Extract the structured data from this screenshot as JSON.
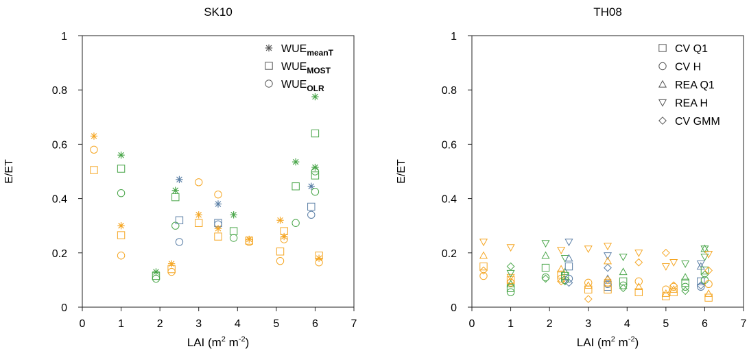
{
  "chart_data": [
    {
      "type": "scatter",
      "title": "SK10",
      "xlabel": "LAI (m",
      "xlabel_sup1": "2",
      "xlabel_mid": " m",
      "xlabel_sup2": "-2",
      "xlabel_end": ")",
      "ylabel": "E/ET",
      "xlim": [
        0,
        7
      ],
      "ylim": [
        0,
        1
      ],
      "xticks": [
        "0",
        "1",
        "2",
        "3",
        "4",
        "5",
        "6",
        "7"
      ],
      "yticks": [
        "0",
        "0.2",
        "0.4",
        "0.6",
        "0.8",
        "1"
      ],
      "legend": [
        {
          "base": "WUE",
          "sub": "meanT",
          "marker": "star"
        },
        {
          "base": "WUE",
          "sub": "MOST",
          "marker": "square"
        },
        {
          "base": "WUE",
          "sub": "OLR",
          "marker": "circle"
        }
      ],
      "colors": {
        "orange": "#f5a623",
        "green": "#4aa64a",
        "blue": "#5b7fa6",
        "gray": "#555555"
      },
      "points": [
        {
          "m": "star",
          "c": "orange",
          "x": 0.3,
          "y": 0.63
        },
        {
          "m": "square",
          "c": "orange",
          "x": 0.3,
          "y": 0.505
        },
        {
          "m": "circle",
          "c": "orange",
          "x": 0.3,
          "y": 0.58
        },
        {
          "m": "star",
          "c": "green",
          "x": 1.0,
          "y": 0.56
        },
        {
          "m": "square",
          "c": "green",
          "x": 1.0,
          "y": 0.51
        },
        {
          "m": "circle",
          "c": "green",
          "x": 1.0,
          "y": 0.42
        },
        {
          "m": "star",
          "c": "orange",
          "x": 1.0,
          "y": 0.3
        },
        {
          "m": "square",
          "c": "orange",
          "x": 1.0,
          "y": 0.265
        },
        {
          "m": "circle",
          "c": "orange",
          "x": 1.0,
          "y": 0.19
        },
        {
          "m": "star",
          "c": "green",
          "x": 1.9,
          "y": 0.13
        },
        {
          "m": "square",
          "c": "green",
          "x": 1.9,
          "y": 0.115
        },
        {
          "m": "circle",
          "c": "green",
          "x": 1.9,
          "y": 0.105
        },
        {
          "m": "star",
          "c": "orange",
          "x": 2.3,
          "y": 0.16
        },
        {
          "m": "square",
          "c": "orange",
          "x": 2.3,
          "y": 0.14
        },
        {
          "m": "circle",
          "c": "orange",
          "x": 2.3,
          "y": 0.13
        },
        {
          "m": "star",
          "c": "green",
          "x": 2.4,
          "y": 0.43
        },
        {
          "m": "square",
          "c": "green",
          "x": 2.4,
          "y": 0.405
        },
        {
          "m": "circle",
          "c": "green",
          "x": 2.4,
          "y": 0.3
        },
        {
          "m": "star",
          "c": "blue",
          "x": 2.5,
          "y": 0.47
        },
        {
          "m": "square",
          "c": "blue",
          "x": 2.5,
          "y": 0.32
        },
        {
          "m": "circle",
          "c": "blue",
          "x": 2.5,
          "y": 0.24
        },
        {
          "m": "circle",
          "c": "orange",
          "x": 3.0,
          "y": 0.46
        },
        {
          "m": "star",
          "c": "orange",
          "x": 3.0,
          "y": 0.34
        },
        {
          "m": "square",
          "c": "orange",
          "x": 3.0,
          "y": 0.31
        },
        {
          "m": "star",
          "c": "blue",
          "x": 3.5,
          "y": 0.38
        },
        {
          "m": "square",
          "c": "blue",
          "x": 3.5,
          "y": 0.31
        },
        {
          "m": "circle",
          "c": "blue",
          "x": 3.5,
          "y": 0.305
        },
        {
          "m": "circle",
          "c": "orange",
          "x": 3.5,
          "y": 0.415
        },
        {
          "m": "star",
          "c": "orange",
          "x": 3.5,
          "y": 0.29
        },
        {
          "m": "square",
          "c": "orange",
          "x": 3.5,
          "y": 0.26
        },
        {
          "m": "star",
          "c": "green",
          "x": 3.9,
          "y": 0.34
        },
        {
          "m": "square",
          "c": "green",
          "x": 3.9,
          "y": 0.28
        },
        {
          "m": "circle",
          "c": "green",
          "x": 3.9,
          "y": 0.255
        },
        {
          "m": "star",
          "c": "orange",
          "x": 4.3,
          "y": 0.25
        },
        {
          "m": "square",
          "c": "orange",
          "x": 4.3,
          "y": 0.245
        },
        {
          "m": "circle",
          "c": "orange",
          "x": 4.3,
          "y": 0.24
        },
        {
          "m": "star",
          "c": "orange",
          "x": 5.1,
          "y": 0.32
        },
        {
          "m": "square",
          "c": "orange",
          "x": 5.1,
          "y": 0.205
        },
        {
          "m": "circle",
          "c": "orange",
          "x": 5.1,
          "y": 0.17
        },
        {
          "m": "square",
          "c": "orange",
          "x": 5.2,
          "y": 0.28
        },
        {
          "m": "star",
          "c": "orange",
          "x": 5.2,
          "y": 0.26
        },
        {
          "m": "circle",
          "c": "orange",
          "x": 5.2,
          "y": 0.25
        },
        {
          "m": "star",
          "c": "green",
          "x": 5.5,
          "y": 0.535
        },
        {
          "m": "square",
          "c": "green",
          "x": 5.5,
          "y": 0.445
        },
        {
          "m": "circle",
          "c": "green",
          "x": 5.5,
          "y": 0.31
        },
        {
          "m": "star",
          "c": "blue",
          "x": 5.9,
          "y": 0.445
        },
        {
          "m": "square",
          "c": "blue",
          "x": 5.9,
          "y": 0.37
        },
        {
          "m": "circle",
          "c": "blue",
          "x": 5.9,
          "y": 0.34
        },
        {
          "m": "star",
          "c": "green",
          "x": 6.0,
          "y": 0.775
        },
        {
          "m": "square",
          "c": "green",
          "x": 6.0,
          "y": 0.64
        },
        {
          "m": "star",
          "c": "green",
          "x": 6.0,
          "y": 0.515
        },
        {
          "m": "circle",
          "c": "green",
          "x": 6.0,
          "y": 0.5
        },
        {
          "m": "square",
          "c": "green",
          "x": 6.0,
          "y": 0.485
        },
        {
          "m": "circle",
          "c": "green",
          "x": 6.0,
          "y": 0.425
        },
        {
          "m": "square",
          "c": "orange",
          "x": 6.1,
          "y": 0.19
        },
        {
          "m": "star",
          "c": "orange",
          "x": 6.1,
          "y": 0.18
        },
        {
          "m": "circle",
          "c": "orange",
          "x": 6.1,
          "y": 0.165
        }
      ]
    },
    {
      "type": "scatter",
      "title": "TH08",
      "xlabel": "LAI (m",
      "xlabel_sup1": "2",
      "xlabel_mid": " m",
      "xlabel_sup2": "-2",
      "xlabel_end": ")",
      "ylabel": "E/ET",
      "xlim": [
        0,
        7
      ],
      "ylim": [
        0,
        1
      ],
      "xticks": [
        "0",
        "1",
        "2",
        "3",
        "4",
        "5",
        "6",
        "7"
      ],
      "yticks": [
        "0",
        "0.2",
        "0.4",
        "0.6",
        "0.8",
        "1"
      ],
      "legend": [
        {
          "base": "CV Q1",
          "sub": "",
          "marker": "square"
        },
        {
          "base": "CV H",
          "sub": "",
          "marker": "circle"
        },
        {
          "base": "REA Q1",
          "sub": "",
          "marker": "triangle-up"
        },
        {
          "base": "REA H",
          "sub": "",
          "marker": "triangle-down"
        },
        {
          "base": "CV GMM",
          "sub": "",
          "marker": "diamond"
        }
      ],
      "colors": {
        "orange": "#f5a623",
        "green": "#4aa64a",
        "blue": "#5b7fa6",
        "gray": "#555555"
      },
      "points": [
        {
          "m": "triangle-down",
          "c": "orange",
          "x": 0.3,
          "y": 0.24
        },
        {
          "m": "triangle-up",
          "c": "orange",
          "x": 0.3,
          "y": 0.19
        },
        {
          "m": "square",
          "c": "orange",
          "x": 0.3,
          "y": 0.15
        },
        {
          "m": "diamond",
          "c": "orange",
          "x": 0.3,
          "y": 0.135
        },
        {
          "m": "circle",
          "c": "orange",
          "x": 0.3,
          "y": 0.115
        },
        {
          "m": "triangle-down",
          "c": "orange",
          "x": 1.0,
          "y": 0.22
        },
        {
          "m": "triangle-down",
          "c": "orange",
          "x": 1.0,
          "y": 0.11
        },
        {
          "m": "square",
          "c": "orange",
          "x": 1.0,
          "y": 0.1
        },
        {
          "m": "circle",
          "c": "orange",
          "x": 1.0,
          "y": 0.09
        },
        {
          "m": "diamond",
          "c": "orange",
          "x": 1.0,
          "y": 0.095
        },
        {
          "m": "diamond",
          "c": "green",
          "x": 1.0,
          "y": 0.15
        },
        {
          "m": "triangle-down",
          "c": "green",
          "x": 1.0,
          "y": 0.125
        },
        {
          "m": "triangle-up",
          "c": "green",
          "x": 1.0,
          "y": 0.085
        },
        {
          "m": "square",
          "c": "green",
          "x": 1.0,
          "y": 0.07
        },
        {
          "m": "circle",
          "c": "green",
          "x": 1.0,
          "y": 0.055
        },
        {
          "m": "triangle-down",
          "c": "green",
          "x": 1.9,
          "y": 0.235
        },
        {
          "m": "triangle-up",
          "c": "green",
          "x": 1.9,
          "y": 0.19
        },
        {
          "m": "square",
          "c": "green",
          "x": 1.9,
          "y": 0.145
        },
        {
          "m": "circle",
          "c": "green",
          "x": 1.9,
          "y": 0.11
        },
        {
          "m": "diamond",
          "c": "green",
          "x": 1.9,
          "y": 0.105
        },
        {
          "m": "triangle-down",
          "c": "orange",
          "x": 2.3,
          "y": 0.21
        },
        {
          "m": "triangle-up",
          "c": "orange",
          "x": 2.3,
          "y": 0.14
        },
        {
          "m": "square",
          "c": "orange",
          "x": 2.3,
          "y": 0.12
        },
        {
          "m": "circle",
          "c": "orange",
          "x": 2.3,
          "y": 0.105
        },
        {
          "m": "diamond",
          "c": "orange",
          "x": 2.3,
          "y": 0.095
        },
        {
          "m": "triangle-down",
          "c": "green",
          "x": 2.4,
          "y": 0.18
        },
        {
          "m": "triangle-up",
          "c": "green",
          "x": 2.4,
          "y": 0.13
        },
        {
          "m": "square",
          "c": "green",
          "x": 2.4,
          "y": 0.115
        },
        {
          "m": "circle",
          "c": "green",
          "x": 2.4,
          "y": 0.1
        },
        {
          "m": "diamond",
          "c": "green",
          "x": 2.4,
          "y": 0.095
        },
        {
          "m": "triangle-down",
          "c": "blue",
          "x": 2.5,
          "y": 0.24
        },
        {
          "m": "triangle-up",
          "c": "blue",
          "x": 2.5,
          "y": 0.18
        },
        {
          "m": "square",
          "c": "blue",
          "x": 2.5,
          "y": 0.15
        },
        {
          "m": "circle",
          "c": "blue",
          "x": 2.5,
          "y": 0.105
        },
        {
          "m": "diamond",
          "c": "blue",
          "x": 2.5,
          "y": 0.09
        },
        {
          "m": "triangle-down",
          "c": "orange",
          "x": 3.0,
          "y": 0.215
        },
        {
          "m": "circle",
          "c": "orange",
          "x": 3.0,
          "y": 0.09
        },
        {
          "m": "triangle-up",
          "c": "orange",
          "x": 3.0,
          "y": 0.08
        },
        {
          "m": "square",
          "c": "orange",
          "x": 3.0,
          "y": 0.065
        },
        {
          "m": "diamond",
          "c": "orange",
          "x": 3.0,
          "y": 0.03
        },
        {
          "m": "triangle-down",
          "c": "blue",
          "x": 3.5,
          "y": 0.19
        },
        {
          "m": "diamond",
          "c": "blue",
          "x": 3.5,
          "y": 0.145
        },
        {
          "m": "triangle-up",
          "c": "blue",
          "x": 3.5,
          "y": 0.105
        },
        {
          "m": "circle",
          "c": "blue",
          "x": 3.5,
          "y": 0.085
        },
        {
          "m": "square",
          "c": "blue",
          "x": 3.5,
          "y": 0.075
        },
        {
          "m": "triangle-down",
          "c": "orange",
          "x": 3.5,
          "y": 0.225
        },
        {
          "m": "triangle-up",
          "c": "orange",
          "x": 3.5,
          "y": 0.17
        },
        {
          "m": "diamond",
          "c": "orange",
          "x": 3.5,
          "y": 0.1
        },
        {
          "m": "circle",
          "c": "orange",
          "x": 3.5,
          "y": 0.09
        },
        {
          "m": "square",
          "c": "orange",
          "x": 3.5,
          "y": 0.065
        },
        {
          "m": "triangle-down",
          "c": "green",
          "x": 3.9,
          "y": 0.185
        },
        {
          "m": "triangle-up",
          "c": "green",
          "x": 3.9,
          "y": 0.13
        },
        {
          "m": "square",
          "c": "green",
          "x": 3.9,
          "y": 0.095
        },
        {
          "m": "circle",
          "c": "green",
          "x": 3.9,
          "y": 0.08
        },
        {
          "m": "diamond",
          "c": "green",
          "x": 3.9,
          "y": 0.07
        },
        {
          "m": "triangle-down",
          "c": "orange",
          "x": 4.3,
          "y": 0.2
        },
        {
          "m": "diamond",
          "c": "orange",
          "x": 4.3,
          "y": 0.165
        },
        {
          "m": "circle",
          "c": "orange",
          "x": 4.3,
          "y": 0.095
        },
        {
          "m": "triangle-up",
          "c": "orange",
          "x": 4.3,
          "y": 0.075
        },
        {
          "m": "square",
          "c": "orange",
          "x": 4.3,
          "y": 0.055
        },
        {
          "m": "diamond",
          "c": "orange",
          "x": 5.0,
          "y": 0.2
        },
        {
          "m": "triangle-down",
          "c": "orange",
          "x": 5.0,
          "y": 0.15
        },
        {
          "m": "circle",
          "c": "orange",
          "x": 5.0,
          "y": 0.065
        },
        {
          "m": "triangle-up",
          "c": "orange",
          "x": 5.0,
          "y": 0.05
        },
        {
          "m": "square",
          "c": "orange",
          "x": 5.0,
          "y": 0.04
        },
        {
          "m": "triangle-down",
          "c": "orange",
          "x": 5.2,
          "y": 0.165
        },
        {
          "m": "diamond",
          "c": "orange",
          "x": 5.2,
          "y": 0.08
        },
        {
          "m": "circle",
          "c": "orange",
          "x": 5.2,
          "y": 0.075
        },
        {
          "m": "triangle-up",
          "c": "orange",
          "x": 5.2,
          "y": 0.065
        },
        {
          "m": "square",
          "c": "orange",
          "x": 5.2,
          "y": 0.055
        },
        {
          "m": "triangle-down",
          "c": "green",
          "x": 5.5,
          "y": 0.16
        },
        {
          "m": "triangle-up",
          "c": "green",
          "x": 5.5,
          "y": 0.11
        },
        {
          "m": "square",
          "c": "green",
          "x": 5.5,
          "y": 0.09
        },
        {
          "m": "circle",
          "c": "green",
          "x": 5.5,
          "y": 0.075
        },
        {
          "m": "diamond",
          "c": "green",
          "x": 5.5,
          "y": 0.06
        },
        {
          "m": "triangle-down",
          "c": "blue",
          "x": 5.9,
          "y": 0.16
        },
        {
          "m": "triangle-up",
          "c": "blue",
          "x": 5.9,
          "y": 0.15
        },
        {
          "m": "square",
          "c": "blue",
          "x": 5.9,
          "y": 0.095
        },
        {
          "m": "diamond",
          "c": "blue",
          "x": 5.9,
          "y": 0.08
        },
        {
          "m": "circle",
          "c": "blue",
          "x": 5.9,
          "y": 0.075
        },
        {
          "m": "triangle-down",
          "c": "green",
          "x": 6.0,
          "y": 0.215
        },
        {
          "m": "triangle-up",
          "c": "green",
          "x": 6.0,
          "y": 0.215
        },
        {
          "m": "triangle-down",
          "c": "green",
          "x": 6.0,
          "y": 0.185
        },
        {
          "m": "square",
          "c": "green",
          "x": 6.0,
          "y": 0.135
        },
        {
          "m": "diamond",
          "c": "green",
          "x": 6.0,
          "y": 0.12
        },
        {
          "m": "circle",
          "c": "green",
          "x": 6.0,
          "y": 0.1
        },
        {
          "m": "triangle-down",
          "c": "orange",
          "x": 6.1,
          "y": 0.195
        },
        {
          "m": "diamond",
          "c": "orange",
          "x": 6.1,
          "y": 0.135
        },
        {
          "m": "circle",
          "c": "orange",
          "x": 6.1,
          "y": 0.085
        },
        {
          "m": "triangle-up",
          "c": "orange",
          "x": 6.1,
          "y": 0.05
        },
        {
          "m": "square",
          "c": "orange",
          "x": 6.1,
          "y": 0.035
        }
      ]
    }
  ]
}
